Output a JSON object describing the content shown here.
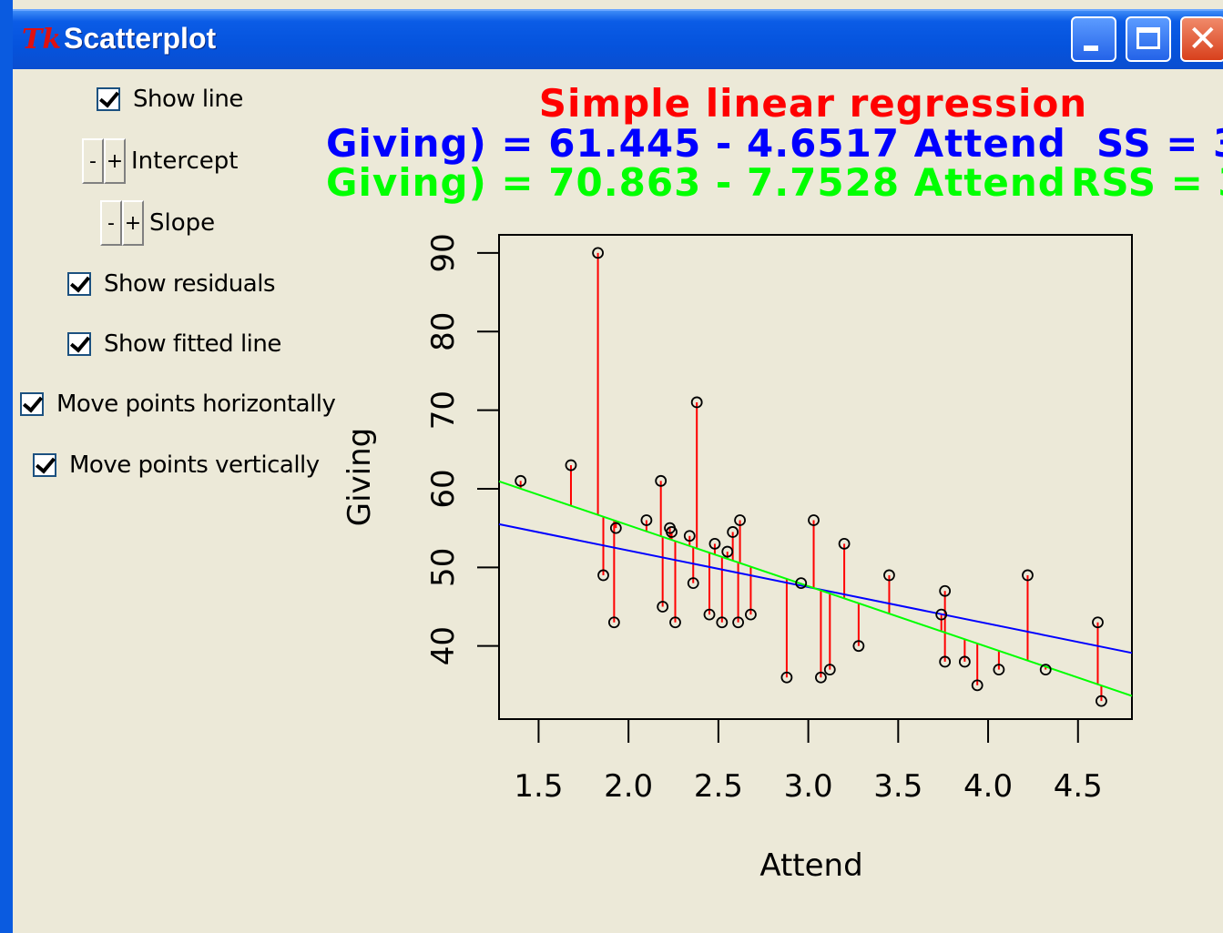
{
  "window": {
    "title": "Scatterplot",
    "logo_text": "Tk"
  },
  "controls": {
    "show_line": {
      "label": "Show line",
      "checked": true
    },
    "intercept": {
      "label": "Intercept",
      "minus": "-",
      "plus": "+"
    },
    "slope": {
      "label": "Slope",
      "minus": "-",
      "plus": "+"
    },
    "show_residuals": {
      "label": "Show residuals",
      "checked": true
    },
    "show_fitted_line": {
      "label": "Show fitted line",
      "checked": true
    },
    "move_horizontally": {
      "label": "Move points horizontally",
      "checked": true
    },
    "move_vertically": {
      "label": "Move points vertically",
      "checked": true
    }
  },
  "header": {
    "title": "Simple linear regression",
    "user_eq": "Giving) = 61.445 - 4.6517 Attend",
    "user_ss": "SS = 3",
    "fit_eq": "Giving) = 70.863 - 7.7528 Attend",
    "fit_rss": "RSS = 3"
  },
  "chart_data": {
    "type": "scatter",
    "xlabel": "Attend",
    "ylabel": "Giving",
    "xlim": [
      1.28,
      4.8
    ],
    "ylim": [
      30.7,
      92.3
    ],
    "xticks": [
      1.5,
      2.0,
      2.5,
      3.0,
      3.5,
      4.0,
      4.5
    ],
    "yticks": [
      40,
      50,
      60,
      70,
      80,
      90
    ],
    "xtick_labels": [
      "1.5",
      "2.0",
      "2.5",
      "3.0",
      "3.5",
      "4.0",
      "4.5"
    ],
    "ytick_labels": [
      "40",
      "50",
      "60",
      "70",
      "80",
      "90"
    ],
    "user_line": {
      "intercept": 61.445,
      "slope": -4.6517,
      "color": "#0000ff"
    },
    "fitted_line": {
      "intercept": 70.863,
      "slope": -7.7528,
      "color": "#00ff00"
    },
    "residual_color": "#ff0000",
    "points": [
      {
        "x": 1.4,
        "y": 61.0
      },
      {
        "x": 1.68,
        "y": 63.0
      },
      {
        "x": 1.83,
        "y": 90.0
      },
      {
        "x": 1.86,
        "y": 49.0
      },
      {
        "x": 1.92,
        "y": 43.0
      },
      {
        "x": 1.93,
        "y": 55.0
      },
      {
        "x": 2.1,
        "y": 56.0
      },
      {
        "x": 2.18,
        "y": 61.0
      },
      {
        "x": 2.19,
        "y": 45.0
      },
      {
        "x": 2.23,
        "y": 55.0
      },
      {
        "x": 2.24,
        "y": 54.5
      },
      {
        "x": 2.26,
        "y": 43.0
      },
      {
        "x": 2.34,
        "y": 54.0
      },
      {
        "x": 2.36,
        "y": 48.0
      },
      {
        "x": 2.38,
        "y": 71.0
      },
      {
        "x": 2.45,
        "y": 44.0
      },
      {
        "x": 2.48,
        "y": 53.0
      },
      {
        "x": 2.52,
        "y": 43.0
      },
      {
        "x": 2.55,
        "y": 52.0
      },
      {
        "x": 2.58,
        "y": 54.5
      },
      {
        "x": 2.61,
        "y": 43.0
      },
      {
        "x": 2.62,
        "y": 56.0
      },
      {
        "x": 2.68,
        "y": 44.0
      },
      {
        "x": 2.88,
        "y": 36.0
      },
      {
        "x": 2.96,
        "y": 48.0
      },
      {
        "x": 3.03,
        "y": 56.0
      },
      {
        "x": 3.07,
        "y": 36.0
      },
      {
        "x": 3.12,
        "y": 37.0
      },
      {
        "x": 3.2,
        "y": 53.0
      },
      {
        "x": 3.28,
        "y": 40.0
      },
      {
        "x": 3.45,
        "y": 49.0
      },
      {
        "x": 3.74,
        "y": 44.0
      },
      {
        "x": 3.76,
        "y": 47.0
      },
      {
        "x": 3.76,
        "y": 38.0
      },
      {
        "x": 3.87,
        "y": 38.0
      },
      {
        "x": 3.94,
        "y": 35.0
      },
      {
        "x": 4.06,
        "y": 37.0
      },
      {
        "x": 4.22,
        "y": 49.0
      },
      {
        "x": 4.32,
        "y": 37.0
      },
      {
        "x": 4.61,
        "y": 43.0
      },
      {
        "x": 4.63,
        "y": 33.0
      }
    ]
  }
}
